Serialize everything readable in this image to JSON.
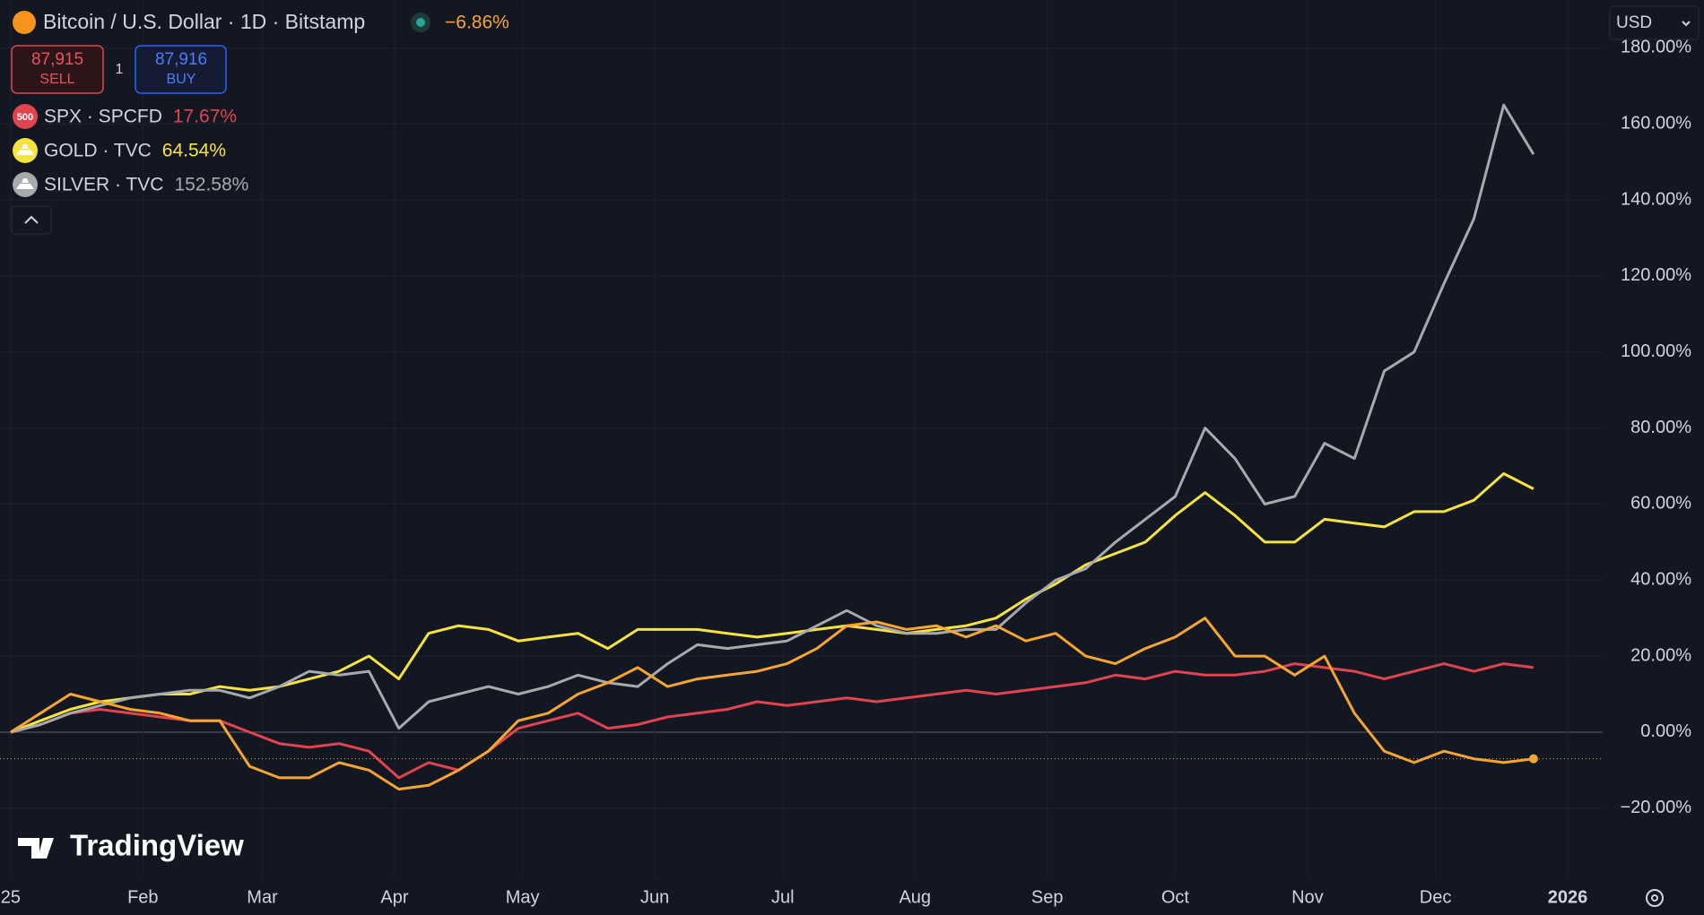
{
  "chart_data": {
    "type": "line",
    "title": "Bitcoin / U.S. Dollar · 1D · Bitstamp",
    "change_label": "−6.86%",
    "sell": {
      "price": "87,915",
      "label": "SELL"
    },
    "spread": "1",
    "buy": {
      "price": "87,916",
      "label": "BUY"
    },
    "currency": "USD",
    "watermark": "TradingView",
    "x": [
      0,
      7,
      14,
      21,
      28,
      35,
      42,
      49,
      56,
      63,
      70,
      77,
      84,
      91,
      98,
      105,
      112,
      119,
      126,
      133,
      140,
      147,
      154,
      161,
      168,
      175,
      182,
      189,
      196,
      203,
      210,
      217,
      224,
      231,
      238,
      245,
      252,
      259,
      266,
      273,
      280,
      287,
      294,
      301,
      308,
      315,
      322,
      329,
      336,
      343,
      350,
      357
    ],
    "series": [
      {
        "name": "Bitcoin / U.S. Dollar",
        "color": "#f7a531",
        "values": [
          0,
          5,
          10,
          8,
          6,
          5,
          3,
          3,
          -9,
          -12,
          -12,
          -8,
          -10,
          -15,
          -14,
          -10,
          -5,
          3,
          5,
          10,
          13,
          17,
          12,
          14,
          15,
          16,
          18,
          22,
          28,
          29,
          27,
          28,
          25,
          28,
          24,
          26,
          20,
          18,
          22,
          25,
          30,
          20,
          20,
          15,
          20,
          5,
          -5,
          -8,
          -5,
          -7,
          -8,
          -7
        ]
      },
      {
        "name": "SPX · SPCFD",
        "color": "#e0454f",
        "last_label": "17.67%",
        "icon": "500",
        "values": [
          0,
          2,
          5,
          6,
          5,
          4,
          3,
          3,
          0,
          -3,
          -4,
          -3,
          -5,
          -12,
          -8,
          -10,
          -5,
          1,
          3,
          5,
          1,
          2,
          4,
          5,
          6,
          8,
          7,
          8,
          9,
          8,
          9,
          10,
          11,
          10,
          11,
          12,
          13,
          15,
          14,
          16,
          15,
          15,
          16,
          18,
          17,
          16,
          14,
          16,
          18,
          16,
          18,
          17
        ]
      },
      {
        "name": "GOLD · TVC",
        "color": "#f7e33f",
        "last_label": "64.54%",
        "values": [
          0,
          3,
          6,
          8,
          9,
          10,
          10,
          12,
          11,
          12,
          14,
          16,
          20,
          14,
          26,
          28,
          27,
          24,
          25,
          26,
          22,
          27,
          27,
          27,
          26,
          25,
          26,
          27,
          28,
          27,
          26,
          27,
          28,
          30,
          35,
          39,
          44,
          47,
          50,
          57,
          63,
          57,
          50,
          50,
          56,
          55,
          54,
          58,
          58,
          61,
          68,
          64
        ]
      },
      {
        "name": "SILVER · TVC",
        "color": "#a8a9ad",
        "last_label": "152.58%",
        "values": [
          0,
          2,
          5,
          7,
          9,
          10,
          11,
          11,
          9,
          12,
          16,
          15,
          16,
          1,
          8,
          10,
          12,
          10,
          12,
          15,
          13,
          12,
          18,
          23,
          22,
          23,
          24,
          28,
          32,
          28,
          26,
          26,
          27,
          27,
          34,
          40,
          43,
          50,
          56,
          62,
          80,
          72,
          60,
          62,
          76,
          72,
          95,
          100,
          118,
          135,
          165,
          152
        ]
      }
    ],
    "xlim": [
      -2.5,
      373.2
    ],
    "xticks": [
      {
        "value": 0,
        "label": "25"
      },
      {
        "value": 31,
        "label": "Feb"
      },
      {
        "value": 59,
        "label": "Mar"
      },
      {
        "value": 90,
        "label": "Apr"
      },
      {
        "value": 120,
        "label": "May"
      },
      {
        "value": 151,
        "label": "Jun"
      },
      {
        "value": 181,
        "label": "Jul"
      },
      {
        "value": 212,
        "label": "Aug"
      },
      {
        "value": 243,
        "label": "Sep"
      },
      {
        "value": 273,
        "label": "Oct"
      },
      {
        "value": 304,
        "label": "Nov"
      },
      {
        "value": 334,
        "label": "Dec"
      },
      {
        "value": 365,
        "label": "2026"
      }
    ],
    "ylim": [
      -38.2,
      192.6
    ],
    "yticks": [
      {
        "value": -20,
        "label": "−20.00%"
      },
      {
        "value": 0,
        "label": "0.00%"
      },
      {
        "value": 20,
        "label": "20.00%"
      },
      {
        "value": 40,
        "label": "40.00%"
      },
      {
        "value": 60,
        "label": "60.00%"
      },
      {
        "value": 80,
        "label": "80.00%"
      },
      {
        "value": 100,
        "label": "100.00%"
      },
      {
        "value": 120,
        "label": "120.00%"
      },
      {
        "value": 140,
        "label": "140.00%"
      },
      {
        "value": 160,
        "label": "160.00%"
      },
      {
        "value": 180,
        "label": "180.00%"
      }
    ],
    "grid": true
  }
}
